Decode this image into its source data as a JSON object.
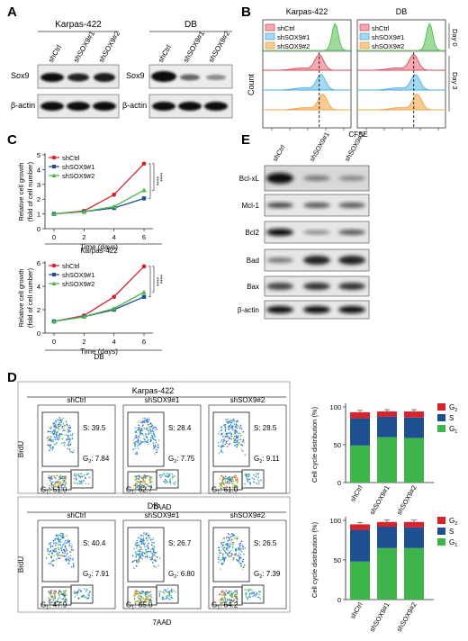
{
  "panels": {
    "A": {
      "letter": "A",
      "blots": [
        {
          "cell_line": "Karpas-422",
          "lanes": [
            "shCtrl",
            "shSOX9#1",
            "shSOX9#2"
          ],
          "rows": [
            "Sox9",
            "β-actin"
          ]
        },
        {
          "cell_line": "DB",
          "lanes": [
            "shCtrl",
            "shSOX9#1",
            "shSOX9#2"
          ],
          "rows": [
            "Sox9",
            "β-actin"
          ]
        }
      ]
    },
    "B": {
      "letter": "B",
      "plots": [
        {
          "title": "Karpas-422",
          "legend": [
            "shCtrl",
            "shSOX9#1",
            "shSOX9#2"
          ]
        },
        {
          "title": "DB",
          "legend": [
            "shCtrl",
            "shSOX9#1",
            "shSOX9#2"
          ]
        }
      ],
      "ylabel": "Count",
      "xlabel": "CFSE",
      "side_labels": [
        "Day 0",
        "Day 3"
      ],
      "colors": [
        "#d94a5a",
        "#4aaee3",
        "#f1a34a",
        "#3db54a"
      ]
    },
    "C": {
      "letter": "C"
    },
    "D": {
      "letter": "D",
      "groups": [
        {
          "cell_line": "Karpas-422",
          "plots": [
            {
              "title": "shCtrl",
              "S": "S: 39.5",
              "G2": "7.84",
              "G1": "51.0"
            },
            {
              "title": "shSOX9#1",
              "S": "S: 28.4",
              "G2": "7.75",
              "G1": "62.7"
            },
            {
              "title": "shSOX9#2",
              "S": "S: 28.5",
              "G2": "9.11",
              "G1": "61.0"
            }
          ]
        },
        {
          "cell_line": "DB",
          "plots": [
            {
              "title": "shCtrl",
              "S": "S: 40.4",
              "G2": "7.91",
              "G1": "47.9"
            },
            {
              "title": "shSOX9#1",
              "S": "S: 26.7",
              "G2": "6.80",
              "G1": "65.0"
            },
            {
              "title": "shSOX9#2",
              "S": "S: 26.5",
              "G2": "7.39",
              "G1": "64.2"
            }
          ]
        }
      ],
      "ylabel": "BrdU",
      "xlabel": "7AAD"
    },
    "E": {
      "letter": "E",
      "lanes": [
        "shCtrl",
        "shSOX9#1",
        "shSOX9#2"
      ],
      "rows": [
        "Bcl-xL",
        "Mcl-1",
        "Bcl2",
        "Bad",
        "Bax",
        "β-actin"
      ]
    }
  },
  "chart_data": [
    {
      "type": "line",
      "x": [
        0,
        2,
        4,
        6
      ],
      "xlabel": "Time (days)",
      "ylabel": "Relative cell growth",
      "ylabel2": "(fold of cell number)",
      "cell_line": "Karpas-422",
      "ylim": [
        0,
        5
      ],
      "yticks": [
        0,
        1,
        2,
        3,
        4,
        5
      ],
      "series": [
        {
          "name": "shCtrl",
          "values": [
            1.0,
            1.2,
            2.3,
            4.4
          ],
          "color": "#d6242c",
          "marker": "circle"
        },
        {
          "name": "shSOX9#1",
          "values": [
            1.0,
            1.15,
            1.4,
            2.05
          ],
          "color": "#1d4f91",
          "marker": "square"
        },
        {
          "name": "shSOX9#2",
          "values": [
            1.0,
            1.15,
            1.5,
            2.6
          ],
          "color": "#4bb54b",
          "marker": "triangle"
        }
      ],
      "significance": [
        "****",
        "****"
      ]
    },
    {
      "type": "line",
      "x": [
        0,
        2,
        4,
        6
      ],
      "xlabel": "Time (days)",
      "ylabel": "Relative cell growth",
      "ylabel2": "(fold of cell number)",
      "cell_line": "DB",
      "ylim": [
        0,
        6
      ],
      "yticks": [
        0,
        2,
        4,
        6
      ],
      "series": [
        {
          "name": "shCtrl",
          "values": [
            1.0,
            1.5,
            3.1,
            5.7
          ],
          "color": "#d6242c",
          "marker": "circle"
        },
        {
          "name": "shSOX9#1",
          "values": [
            1.0,
            1.4,
            2.0,
            3.1
          ],
          "color": "#1d4f91",
          "marker": "square"
        },
        {
          "name": "shSOX9#2",
          "values": [
            1.0,
            1.4,
            2.1,
            3.5
          ],
          "color": "#4bb54b",
          "marker": "triangle"
        }
      ],
      "significance": [
        "****",
        "****"
      ]
    },
    {
      "type": "bar",
      "stacked": true,
      "cell_line": "Karpas-422",
      "categories": [
        "shCtrl",
        "shSOX9#1",
        "shSOX9#2"
      ],
      "ylabel": "Cell cycle distribution (%)",
      "ylim": [
        0,
        100
      ],
      "yticks": [
        0,
        50,
        100
      ],
      "series": [
        {
          "name": "G1",
          "values": [
            49,
            60,
            59
          ],
          "color": "#3db54a"
        },
        {
          "name": "S",
          "values": [
            36,
            27,
            27
          ],
          "color": "#1d4f91"
        },
        {
          "name": "G2",
          "values": [
            8,
            7,
            8
          ],
          "color": "#d6242c"
        }
      ]
    },
    {
      "type": "bar",
      "stacked": true,
      "cell_line": "DB",
      "categories": [
        "shCtrl",
        "shSOX9#1",
        "shSOX9#2"
      ],
      "ylabel": "Cell cycle distribution (%)",
      "ylim": [
        0,
        100
      ],
      "yticks": [
        0,
        50,
        100
      ],
      "series": [
        {
          "name": "G1",
          "values": [
            48,
            65,
            65
          ],
          "color": "#3db54a"
        },
        {
          "name": "S",
          "values": [
            40,
            27,
            26
          ],
          "color": "#1d4f91"
        },
        {
          "name": "G2",
          "values": [
            7,
            6,
            7
          ],
          "color": "#d6242c"
        }
      ]
    }
  ]
}
